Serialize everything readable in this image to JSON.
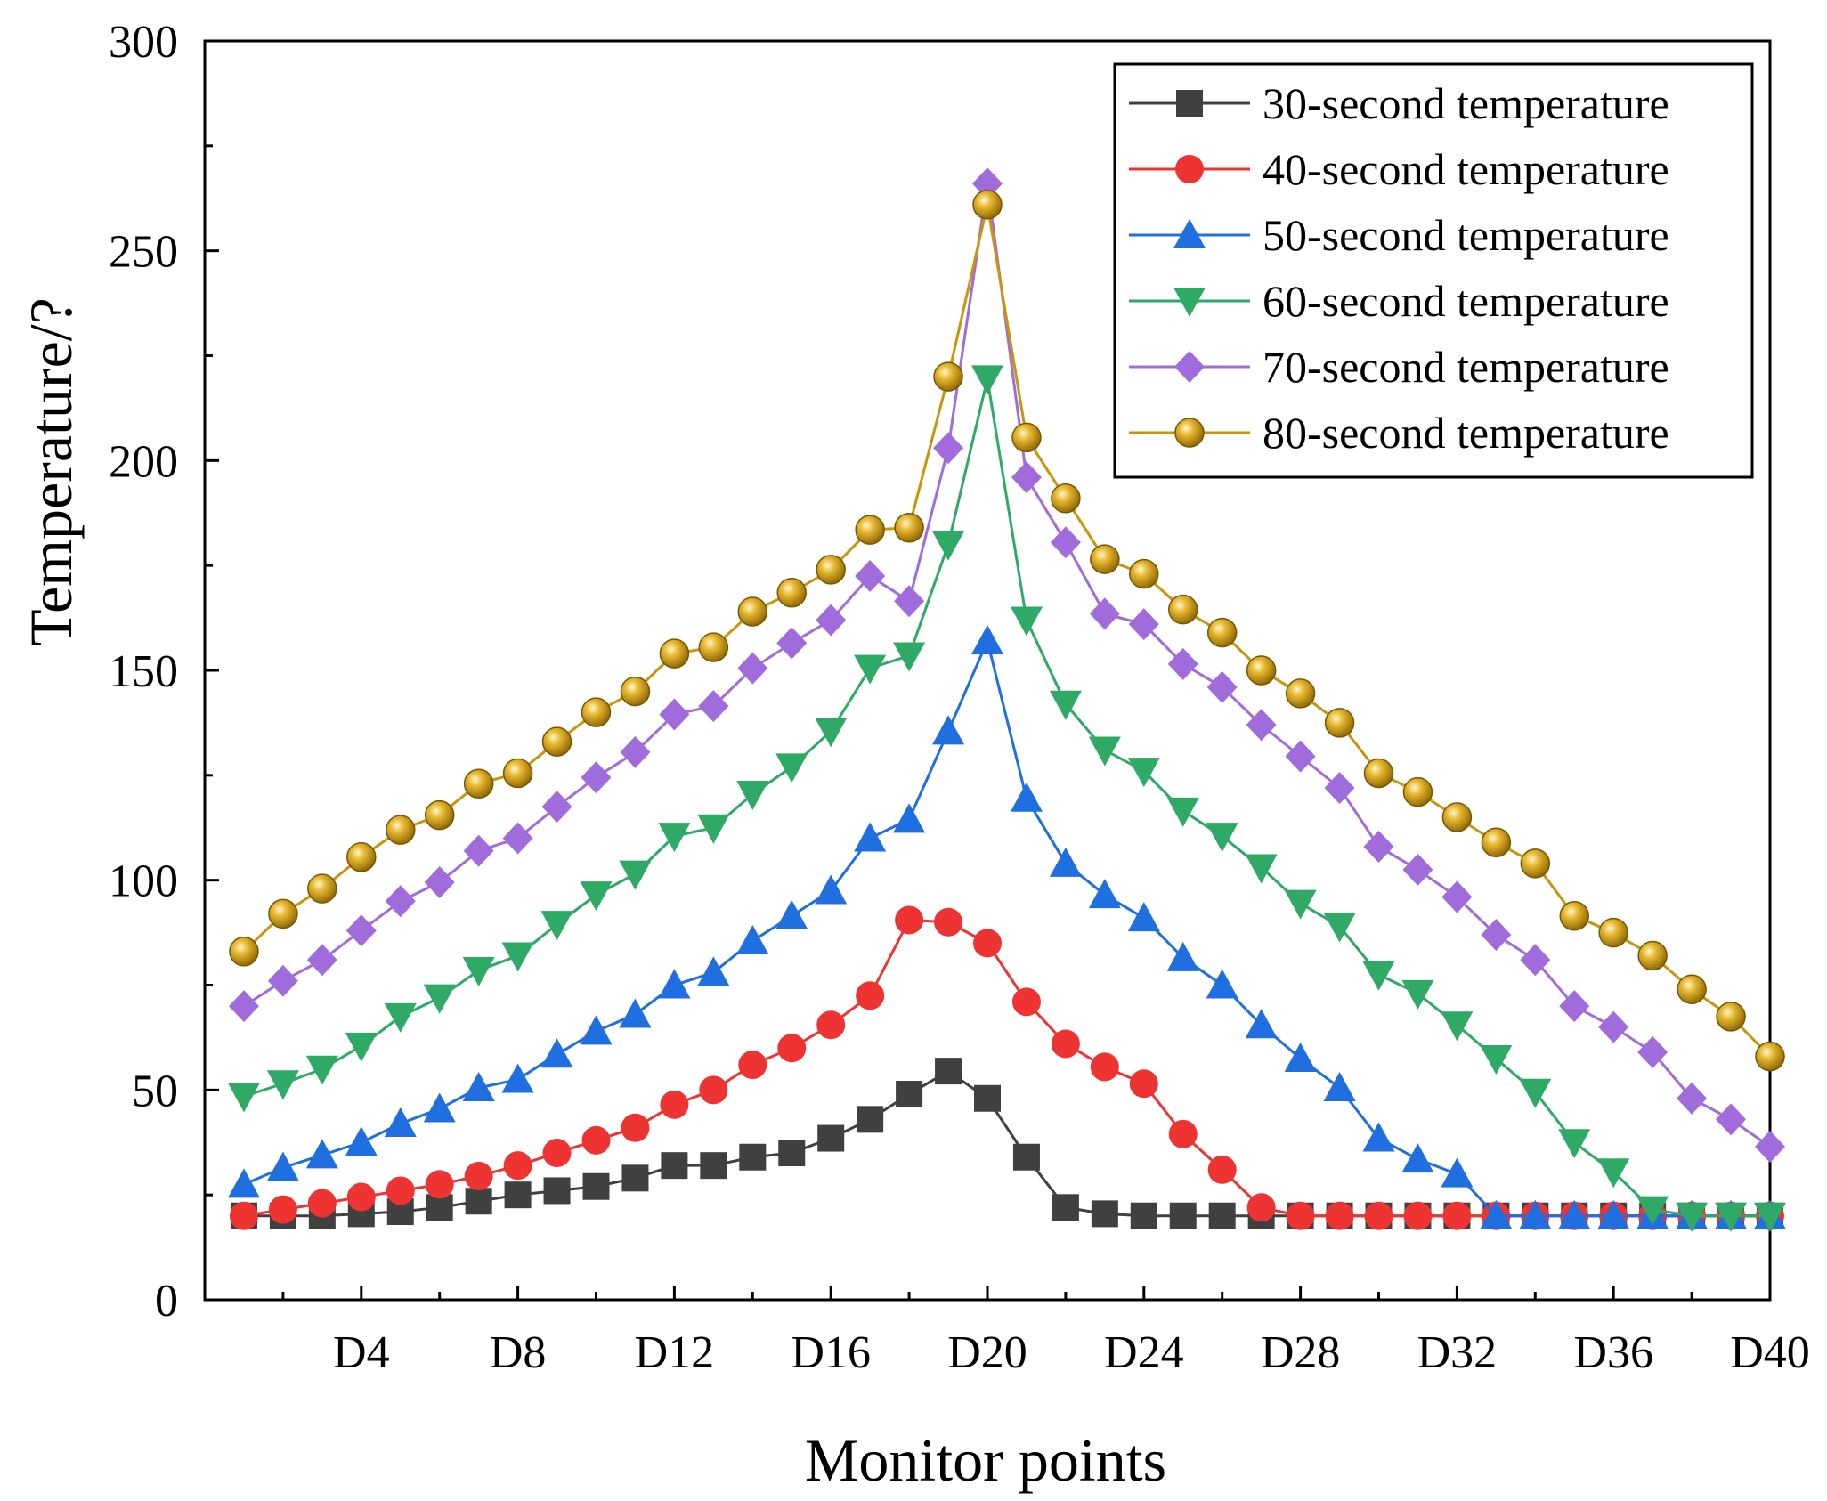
{
  "chart_data": {
    "type": "line",
    "xlabel": "Monitor points",
    "ylabel": "Temperature/?",
    "ylim": [
      0,
      300
    ],
    "yticks": [
      0,
      50,
      100,
      150,
      200,
      250,
      300
    ],
    "xlim": [
      0,
      40
    ],
    "xtick_positions": [
      4,
      8,
      12,
      16,
      20,
      24,
      28,
      32,
      36,
      40
    ],
    "xtick_labels": [
      "D4",
      "D8",
      "D12",
      "D16",
      "D20",
      "D24",
      "D28",
      "D32",
      "D36",
      "D40"
    ],
    "x": [
      1,
      2,
      3,
      4,
      5,
      6,
      7,
      8,
      9,
      10,
      11,
      12,
      13,
      14,
      15,
      16,
      17,
      18,
      19,
      20,
      21,
      22,
      23,
      24,
      25,
      26,
      27,
      28,
      29,
      30,
      31,
      32,
      33,
      34,
      35,
      36,
      37,
      38,
      39,
      40
    ],
    "legend_position": "top-right",
    "series": [
      {
        "name": "30-second temperature",
        "color": "#404040",
        "marker": "square",
        "values": [
          20,
          20,
          20,
          20.5,
          21,
          22,
          23.5,
          25,
          26,
          27,
          29,
          32,
          32,
          34,
          35,
          38.5,
          43,
          49,
          54.5,
          48,
          34,
          22,
          20.5,
          20,
          20,
          20,
          20,
          20,
          20,
          20,
          20,
          20,
          20,
          20,
          20,
          20,
          20,
          20,
          20,
          20
        ]
      },
      {
        "name": "40-second temperature",
        "color": "#ee3333",
        "marker": "circle",
        "values": [
          20,
          21.5,
          23,
          24.5,
          26,
          27.5,
          29.5,
          32,
          35,
          38,
          41,
          46.5,
          50,
          56,
          60,
          65.5,
          72.5,
          90.5,
          90,
          85,
          71,
          61,
          55.5,
          51.5,
          39.5,
          31,
          22,
          20,
          20,
          20,
          20,
          20,
          20,
          20,
          20,
          20,
          20,
          20,
          20,
          20
        ]
      },
      {
        "name": "50-second temperature",
        "color": "#1f6fe0",
        "marker": "triangle-up",
        "values": [
          27.5,
          31.5,
          34.5,
          37.5,
          42,
          45.5,
          50.5,
          52.5,
          58.5,
          64,
          68,
          75,
          78,
          85.5,
          91.5,
          97.5,
          110,
          114.5,
          135.5,
          157,
          119.5,
          104,
          96.5,
          91,
          81.5,
          75,
          65.5,
          57.5,
          50.5,
          38.5,
          33.5,
          30,
          20,
          20,
          20,
          20,
          20,
          20,
          20,
          20
        ]
      },
      {
        "name": "60-second temperature",
        "color": "#2eaa66",
        "marker": "triangle-down",
        "values": [
          48.5,
          51.5,
          55,
          60.5,
          67.5,
          72,
          78.5,
          82,
          89.5,
          96.5,
          101.5,
          110.5,
          112.5,
          120.5,
          127,
          135.5,
          150.5,
          153.5,
          180,
          219.5,
          162,
          142,
          131,
          126,
          116.5,
          110.5,
          103,
          94.5,
          89,
          77.5,
          73,
          65.5,
          57.5,
          49.5,
          37.5,
          30.5,
          21.5,
          20,
          20,
          20
        ]
      },
      {
        "name": "70-second temperature",
        "color": "#a06cdb",
        "marker": "diamond",
        "values": [
          70,
          76,
          81,
          88,
          95,
          99.5,
          107,
          110,
          117.5,
          124.5,
          130.5,
          139.5,
          141.5,
          150.5,
          156.5,
          162,
          172.5,
          166.5,
          203,
          266,
          196,
          180.5,
          163.5,
          161,
          151.5,
          146,
          137,
          129.5,
          122,
          108,
          102.5,
          96,
          87,
          81,
          70,
          65,
          59,
          48,
          43,
          36.5
        ]
      },
      {
        "name": "80-second temperature",
        "color": "#c8960c",
        "marker": "sphere",
        "values": [
          83,
          92,
          98,
          105.5,
          112,
          115.5,
          123,
          125.5,
          133,
          140,
          145,
          154,
          155.5,
          164,
          168.5,
          174,
          183.5,
          184,
          220,
          261,
          205.5,
          191,
          176.5,
          173,
          164.5,
          159,
          150,
          144.5,
          137.5,
          125.5,
          121,
          115,
          109,
          104,
          91.5,
          87.5,
          82,
          74,
          67.5,
          58
        ]
      }
    ]
  }
}
